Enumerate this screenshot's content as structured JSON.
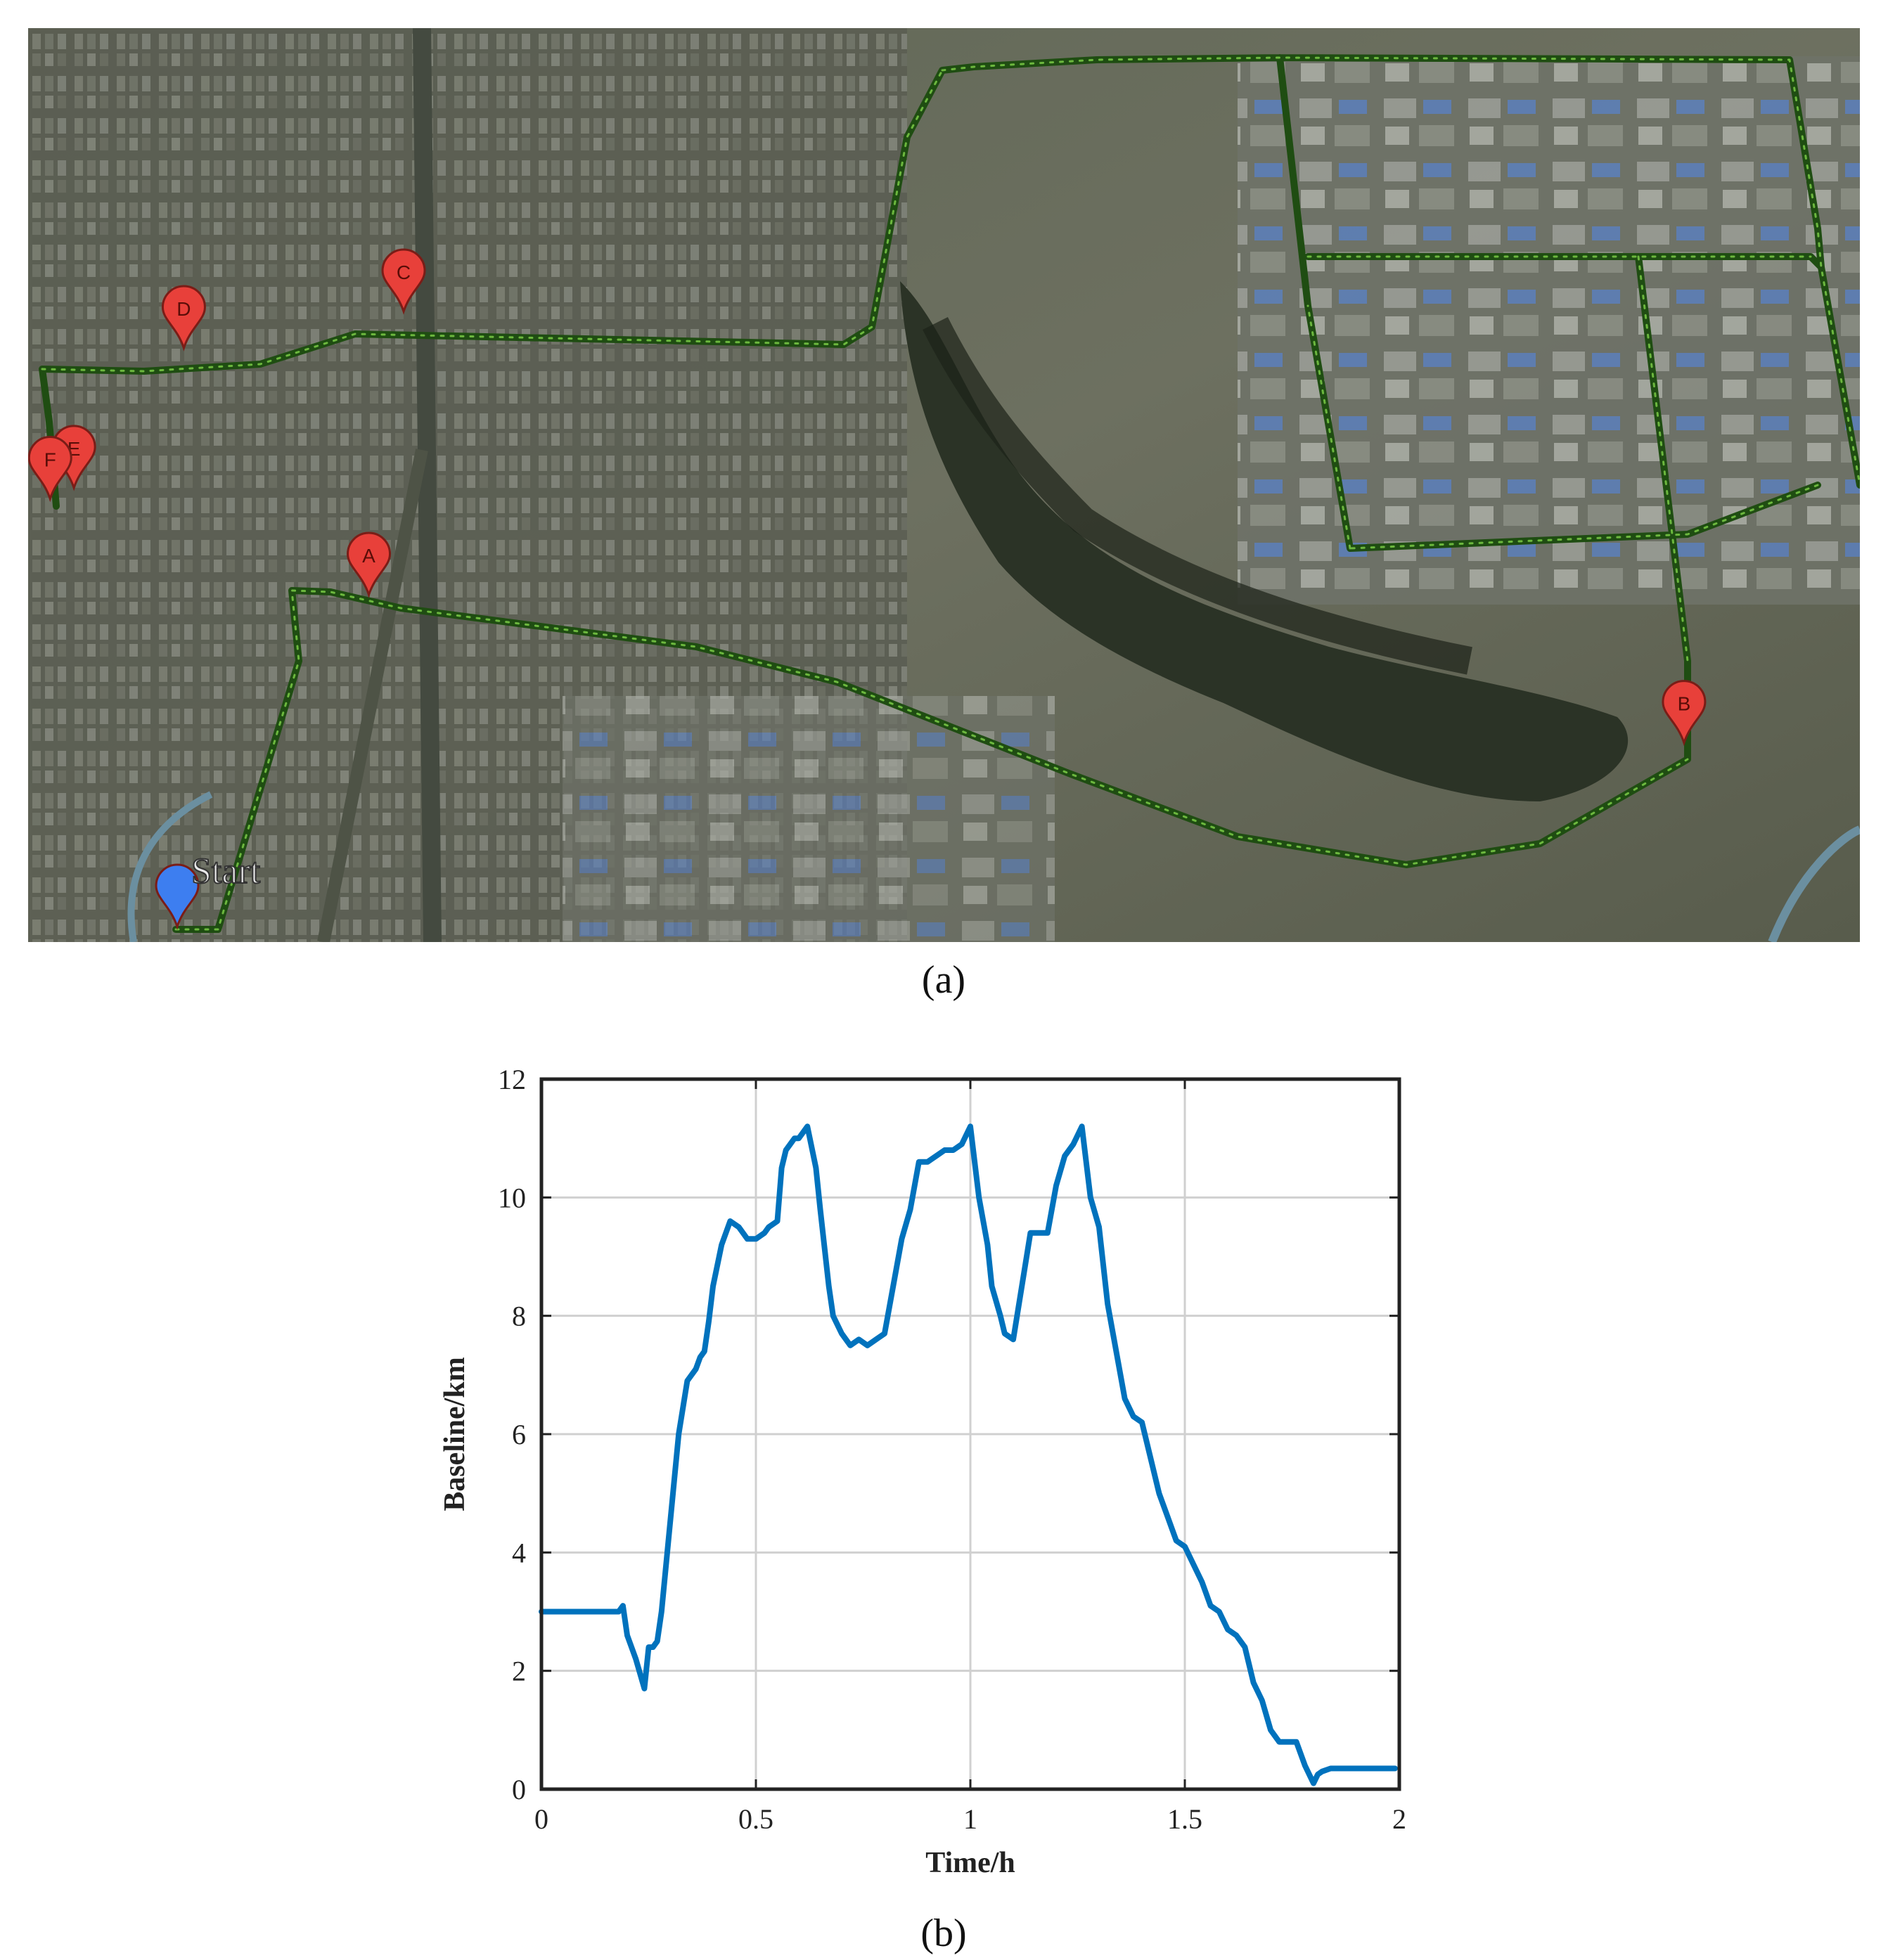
{
  "captions": {
    "a": "(a)",
    "b": "(b)"
  },
  "map": {
    "start_label": "Start",
    "markers": [
      {
        "label": "A",
        "x": 0.186,
        "y": 0.62
      },
      {
        "label": "B",
        "x": 0.904,
        "y": 0.782
      },
      {
        "label": "C",
        "x": 0.205,
        "y": 0.31
      },
      {
        "label": "D",
        "x": 0.085,
        "y": 0.35
      },
      {
        "label": "E",
        "x": 0.025,
        "y": 0.503
      },
      {
        "label": "F",
        "x": 0.012,
        "y": 0.515
      }
    ],
    "colors": {
      "route": "#1f4d12",
      "route_dots": "#7fd34a",
      "marker": "#e8403a",
      "start_marker": "#3d7ef0"
    }
  },
  "chart_data": {
    "type": "line",
    "title": "",
    "xlabel": "Time/h",
    "ylabel": "Baseline/km",
    "xlim": [
      0,
      2
    ],
    "ylim": [
      0,
      12
    ],
    "xticks": [
      "0",
      "0.5",
      "1",
      "1.5",
      "2"
    ],
    "yticks": [
      "0",
      "2",
      "4",
      "6",
      "8",
      "10",
      "12"
    ],
    "grid": true,
    "series": [
      {
        "color": "#0072BD",
        "x": [
          0,
          0.18,
          0.19,
          0.2,
          0.21,
          0.22,
          0.24,
          0.25,
          0.26,
          0.27,
          0.28,
          0.3,
          0.32,
          0.34,
          0.36,
          0.37,
          0.38,
          0.39,
          0.4,
          0.42,
          0.44,
          0.46,
          0.47,
          0.48,
          0.5,
          0.52,
          0.53,
          0.55,
          0.56,
          0.57,
          0.58,
          0.59,
          0.6,
          0.62,
          0.64,
          0.65,
          0.67,
          0.68,
          0.7,
          0.72,
          0.74,
          0.76,
          0.78,
          0.8,
          0.82,
          0.84,
          0.86,
          0.88,
          0.9,
          0.92,
          0.94,
          0.96,
          0.98,
          1.0,
          1.02,
          1.04,
          1.05,
          1.07,
          1.08,
          1.1,
          1.12,
          1.14,
          1.16,
          1.18,
          1.2,
          1.22,
          1.24,
          1.26,
          1.28,
          1.3,
          1.32,
          1.33,
          1.35,
          1.36,
          1.38,
          1.4,
          1.42,
          1.44,
          1.46,
          1.48,
          1.5,
          1.52,
          1.54,
          1.56,
          1.58,
          1.6,
          1.62,
          1.64,
          1.66,
          1.68,
          1.7,
          1.72,
          1.74,
          1.76,
          1.78,
          1.8,
          1.81,
          1.82,
          1.84,
          1.86,
          1.9,
          1.95,
          1.99
        ],
        "y": [
          3.0,
          3.0,
          3.1,
          2.6,
          2.4,
          2.2,
          1.7,
          2.4,
          2.4,
          2.5,
          3.0,
          4.5,
          6.0,
          6.9,
          7.1,
          7.3,
          7.4,
          7.9,
          8.5,
          9.2,
          9.6,
          9.5,
          9.4,
          9.3,
          9.3,
          9.4,
          9.5,
          9.6,
          10.5,
          10.8,
          10.9,
          11.0,
          11.0,
          11.2,
          10.5,
          9.8,
          8.5,
          8.0,
          7.7,
          7.5,
          7.6,
          7.5,
          7.6,
          7.7,
          8.5,
          9.3,
          9.8,
          10.6,
          10.6,
          10.7,
          10.8,
          10.8,
          10.9,
          11.2,
          10.0,
          9.2,
          8.5,
          8.0,
          7.7,
          7.6,
          8.5,
          9.4,
          9.4,
          9.4,
          10.2,
          10.7,
          10.9,
          11.2,
          10.0,
          9.5,
          8.2,
          7.8,
          7.0,
          6.6,
          6.3,
          6.2,
          5.6,
          5.0,
          4.6,
          4.2,
          4.1,
          3.8,
          3.5,
          3.1,
          3.0,
          2.7,
          2.6,
          2.4,
          1.8,
          1.5,
          1.0,
          0.8,
          0.8,
          0.8,
          0.4,
          0.1,
          0.25,
          0.3,
          0.35,
          0.35,
          0.35,
          0.35,
          0.35
        ]
      }
    ]
  }
}
